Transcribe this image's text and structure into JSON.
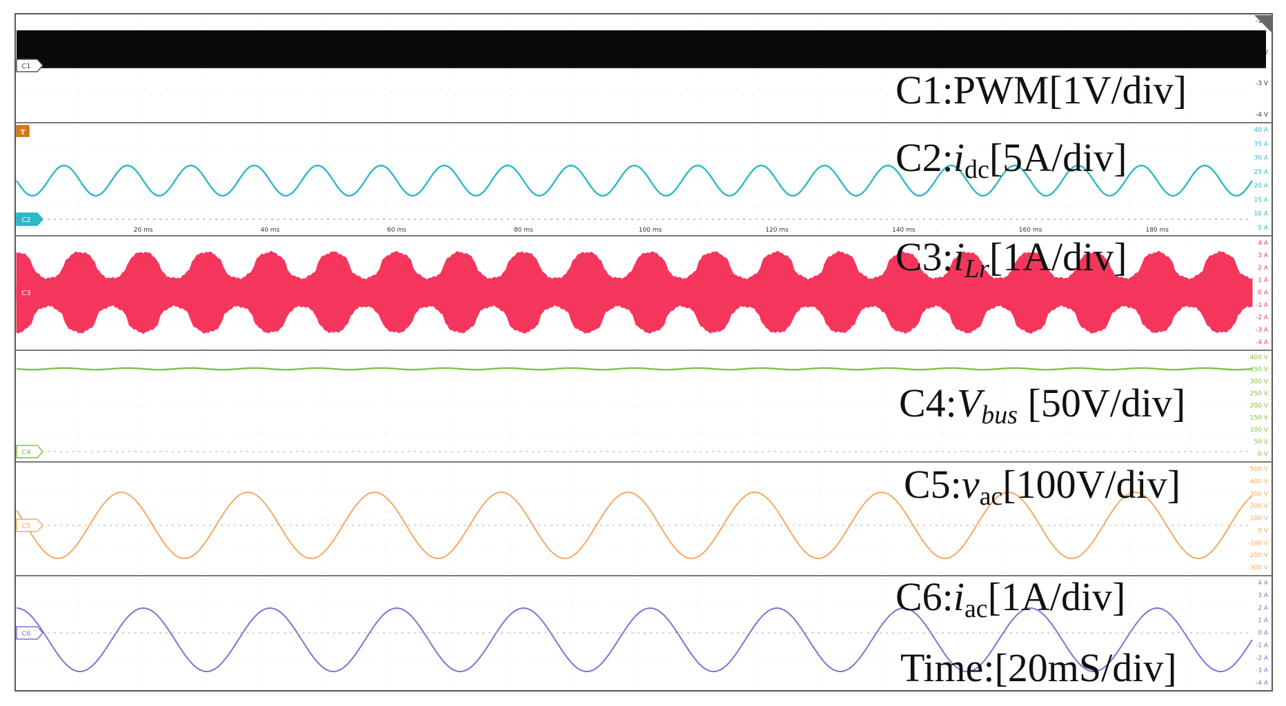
{
  "chart_data": {
    "type": "line",
    "title": "",
    "x": {
      "start_ms": 0,
      "end_ms": 195,
      "tick_labels": [
        "20 ms",
        "40 ms",
        "60 ms",
        "80 ms",
        "100 ms",
        "120 ms",
        "140 ms",
        "160 ms",
        "180 ms"
      ],
      "tick_values_ms": [
        20,
        40,
        60,
        80,
        100,
        120,
        140,
        160,
        180
      ]
    },
    "trigger_label": "T",
    "panels": [
      {
        "channel": "C1",
        "color": "#111111",
        "annotation": {
          "prefix": "C1:PWM[1V/div]",
          "sub": "",
          "suffix": ""
        },
        "ticks": [
          "-1 V",
          "-2 V",
          "-3 V",
          "-4 V"
        ],
        "waveform": {
          "kind": "pwm",
          "level_frac": 0.0,
          "amplitude_frac": 0.0
        }
      },
      {
        "channel": "C2",
        "color": "#2bb8c8",
        "annotation": {
          "prefix": "C2:",
          "italic": "i",
          "sub": "dc",
          "suffix": "[5A/div]"
        },
        "ticks": [
          "40 A",
          "35 A",
          "30 A",
          "25 A",
          "20 A",
          "15 A",
          "10 A",
          "5 A"
        ],
        "waveform": {
          "kind": "sine",
          "frequency_hz": 100,
          "mean_A": 18,
          "amplitude_A": 4.5
        }
      },
      {
        "channel": "C3",
        "color": "#f5365c",
        "annotation": {
          "prefix": "C3:",
          "italic": "i",
          "sub": "Lr",
          "suffix": "[1A/div]"
        },
        "ticks": [
          "4 A",
          "3 A",
          "2 A",
          "1 A",
          "0 A",
          "-1 A",
          "-2 A",
          "-3 A",
          "-4 A"
        ],
        "waveform": {
          "kind": "envelope",
          "frequency_hz": 100,
          "peak_max_A": 3.5,
          "peak_min_A": 1.2
        }
      },
      {
        "channel": "C4",
        "color": "#7cc242",
        "annotation": {
          "prefix": "C4:",
          "italic": "V",
          "sub": "bus",
          "suffix": " [50V/div]"
        },
        "ticks": [
          "400 V",
          "350 V",
          "300 V",
          "250 V",
          "200 V",
          "150 V",
          "100 V",
          "50 V",
          "0 V"
        ],
        "waveform": {
          "kind": "dc",
          "value_V": 385
        }
      },
      {
        "channel": "C5",
        "color": "#f5a860",
        "annotation": {
          "prefix": "C5:",
          "italic": "v",
          "sub": "ac",
          "suffix": "[100V/div]"
        },
        "ticks": [
          "500 V",
          "400 V",
          "300 V",
          "200 V",
          "100 V",
          "0 V",
          "-100 V",
          "-200 V",
          "-300 V"
        ],
        "waveform": {
          "kind": "sine",
          "frequency_hz": 50,
          "mean_V": 0,
          "amplitude_V": 310
        }
      },
      {
        "channel": "C6",
        "color": "#7b72d6",
        "annotation": {
          "prefix": "C6:",
          "italic": "i",
          "sub": "ac",
          "suffix": "[1A/div]"
        },
        "ticks": [
          "4 A",
          "3 A",
          "2 A",
          "1 A",
          "0 A",
          "-1 A",
          "-2 A",
          "-3 A",
          "-4 A"
        ],
        "waveform": {
          "kind": "sine",
          "frequency_hz": 50,
          "mean_A": 0,
          "amplitude_A": 2.6
        }
      }
    ],
    "time_annotation": "Time:[20mS/div]"
  }
}
